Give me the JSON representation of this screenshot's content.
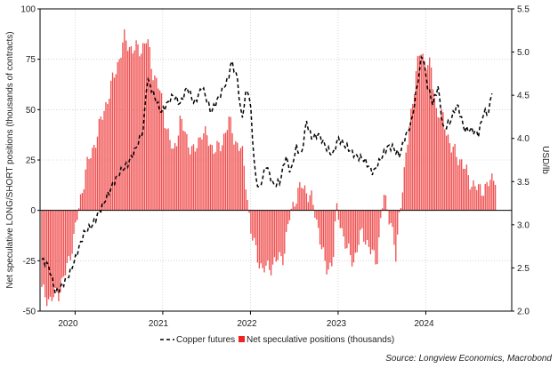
{
  "chart_data": {
    "type": "bar",
    "title": "",
    "ylabel": "Net speculative LONG/SHORT positions (thousands of contracts)",
    "ylabel_right": "USD/lb",
    "ylim": [
      -50,
      100
    ],
    "ylim_right": [
      2.0,
      5.5
    ],
    "yticks_left": [
      -50,
      -25,
      0,
      25,
      50,
      75,
      100
    ],
    "yticks_left_labels": [
      "-50",
      "-25",
      "0",
      "25",
      "50",
      "75",
      "100"
    ],
    "yticks_right": [
      2.0,
      2.5,
      3.0,
      3.5,
      4.0,
      4.5,
      5.0,
      5.5
    ],
    "yticks_right_labels": [
      "2.0",
      "2.5",
      "3.0",
      "3.5",
      "4.0",
      "4.5",
      "5.0",
      "5.5"
    ],
    "xlim": [
      2019.6,
      2024.98
    ],
    "year_boundaries": [
      2020,
      2021,
      2022,
      2023,
      2024
    ],
    "x_tick_labels": [
      {
        "label": "2020",
        "x": 2020.0
      },
      {
        "label": "2021",
        "x": 2021.0
      },
      {
        "label": "2022",
        "x": 2022.0
      },
      {
        "label": "2023",
        "x": 2023.0
      },
      {
        "label": "2024",
        "x": 2024.0
      }
    ],
    "legend": [
      {
        "label": "Copper futures",
        "style": "dashed-line",
        "color": "#000000"
      },
      {
        "label": "Net speculative positions (thousands)",
        "style": "bar",
        "color": "#ee4444"
      }
    ],
    "source": "Source: Longview Economics, Macrobond",
    "colors": {
      "bars": "#f05050",
      "line": "#000000",
      "grid": "#bbbbbb"
    },
    "series": [
      {
        "name": "Net speculative positions (thousands)",
        "axis": "left",
        "type": "bar",
        "anchors": [
          [
            2019.62,
            -40
          ],
          [
            2019.72,
            -45
          ],
          [
            2019.82,
            -40
          ],
          [
            2019.9,
            -30
          ],
          [
            2019.98,
            -15
          ],
          [
            2020.02,
            -5
          ],
          [
            2020.06,
            5
          ],
          [
            2020.12,
            20
          ],
          [
            2020.2,
            30
          ],
          [
            2020.3,
            45
          ],
          [
            2020.4,
            60
          ],
          [
            2020.5,
            75
          ],
          [
            2020.56,
            85
          ],
          [
            2020.65,
            80
          ],
          [
            2020.75,
            80
          ],
          [
            2020.82,
            85
          ],
          [
            2020.88,
            70
          ],
          [
            2020.96,
            60
          ],
          [
            2021.05,
            40
          ],
          [
            2021.12,
            28
          ],
          [
            2021.2,
            45
          ],
          [
            2021.28,
            35
          ],
          [
            2021.36,
            28
          ],
          [
            2021.45,
            40
          ],
          [
            2021.55,
            32
          ],
          [
            2021.65,
            30
          ],
          [
            2021.75,
            45
          ],
          [
            2021.82,
            35
          ],
          [
            2021.9,
            30
          ],
          [
            2021.96,
            10
          ],
          [
            2022.0,
            -10
          ],
          [
            2022.06,
            -20
          ],
          [
            2022.14,
            -30
          ],
          [
            2022.22,
            -28
          ],
          [
            2022.3,
            -25
          ],
          [
            2022.38,
            -22
          ],
          [
            2022.44,
            -5
          ],
          [
            2022.5,
            5
          ],
          [
            2022.58,
            12
          ],
          [
            2022.64,
            10
          ],
          [
            2022.7,
            5
          ],
          [
            2022.78,
            -10
          ],
          [
            2022.86,
            -30
          ],
          [
            2022.94,
            -25
          ],
          [
            2022.98,
            0
          ],
          [
            2023.02,
            -5
          ],
          [
            2023.1,
            -20
          ],
          [
            2023.18,
            -25
          ],
          [
            2023.28,
            -10
          ],
          [
            2023.36,
            -20
          ],
          [
            2023.44,
            -25
          ],
          [
            2023.52,
            8
          ],
          [
            2023.6,
            -5
          ],
          [
            2023.66,
            -25
          ],
          [
            2023.7,
            0
          ],
          [
            2023.76,
            20
          ],
          [
            2023.82,
            45
          ],
          [
            2023.88,
            65
          ],
          [
            2023.94,
            80
          ],
          [
            2023.98,
            75
          ],
          [
            2024.06,
            70
          ],
          [
            2024.12,
            50
          ],
          [
            2024.2,
            45
          ],
          [
            2024.3,
            30
          ],
          [
            2024.4,
            25
          ],
          [
            2024.5,
            15
          ],
          [
            2024.6,
            10
          ],
          [
            2024.7,
            12
          ],
          [
            2024.8,
            18
          ]
        ]
      },
      {
        "name": "Copper futures",
        "axis": "right",
        "type": "line",
        "anchors": [
          [
            2019.62,
            2.6
          ],
          [
            2019.7,
            2.52
          ],
          [
            2019.78,
            2.2
          ],
          [
            2019.85,
            2.3
          ],
          [
            2019.92,
            2.4
          ],
          [
            2020.0,
            2.6
          ],
          [
            2020.1,
            2.9
          ],
          [
            2020.2,
            3.0
          ],
          [
            2020.3,
            3.2
          ],
          [
            2020.4,
            3.4
          ],
          [
            2020.5,
            3.6
          ],
          [
            2020.6,
            3.7
          ],
          [
            2020.7,
            3.9
          ],
          [
            2020.78,
            4.1
          ],
          [
            2020.82,
            4.7
          ],
          [
            2020.9,
            4.5
          ],
          [
            2020.98,
            4.3
          ],
          [
            2021.05,
            4.4
          ],
          [
            2021.12,
            4.5
          ],
          [
            2021.2,
            4.4
          ],
          [
            2021.28,
            4.6
          ],
          [
            2021.36,
            4.4
          ],
          [
            2021.45,
            4.6
          ],
          [
            2021.55,
            4.3
          ],
          [
            2021.65,
            4.5
          ],
          [
            2021.75,
            4.7
          ],
          [
            2021.78,
            4.9
          ],
          [
            2021.85,
            4.7
          ],
          [
            2021.9,
            4.2
          ],
          [
            2021.96,
            4.6
          ],
          [
            2022.0,
            4.4
          ],
          [
            2022.05,
            3.6
          ],
          [
            2022.1,
            3.4
          ],
          [
            2022.18,
            3.7
          ],
          [
            2022.26,
            3.45
          ],
          [
            2022.34,
            3.5
          ],
          [
            2022.4,
            3.8
          ],
          [
            2022.46,
            3.6
          ],
          [
            2022.52,
            3.9
          ],
          [
            2022.58,
            3.8
          ],
          [
            2022.64,
            4.2
          ],
          [
            2022.7,
            4.0
          ],
          [
            2022.78,
            4.05
          ],
          [
            2022.86,
            3.9
          ],
          [
            2022.94,
            3.8
          ],
          [
            2023.0,
            4.0
          ],
          [
            2023.1,
            3.9
          ],
          [
            2023.2,
            3.8
          ],
          [
            2023.3,
            3.75
          ],
          [
            2023.4,
            3.6
          ],
          [
            2023.48,
            3.75
          ],
          [
            2023.56,
            3.9
          ],
          [
            2023.62,
            3.9
          ],
          [
            2023.7,
            3.8
          ],
          [
            2023.76,
            4.0
          ],
          [
            2023.84,
            4.2
          ],
          [
            2023.9,
            4.6
          ],
          [
            2023.96,
            5.0
          ],
          [
            2024.02,
            4.6
          ],
          [
            2024.08,
            4.4
          ],
          [
            2024.14,
            4.6
          ],
          [
            2024.2,
            4.1
          ],
          [
            2024.28,
            4.2
          ],
          [
            2024.36,
            4.4
          ],
          [
            2024.44,
            4.1
          ],
          [
            2024.52,
            4.1
          ],
          [
            2024.6,
            4.05
          ],
          [
            2024.66,
            4.3
          ],
          [
            2024.72,
            4.3
          ],
          [
            2024.76,
            4.6
          ]
        ]
      }
    ]
  }
}
